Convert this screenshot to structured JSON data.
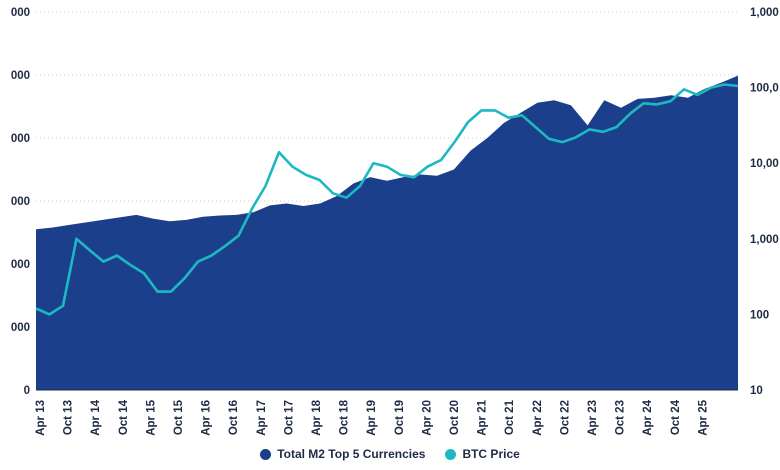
{
  "chart_data": {
    "type": "area",
    "title": "",
    "xlabel": "",
    "ylabel": "",
    "x_ticks": [
      "Apr 13",
      "Oct 13",
      "Apr 14",
      "Oct 14",
      "Apr 15",
      "Oct 15",
      "Apr 16",
      "Oct 16",
      "Apr 17",
      "Oct 17",
      "Apr 18",
      "Oct 18",
      "Apr 19",
      "Oct 19",
      "Apr 20",
      "Oct 20",
      "Apr 21",
      "Oct 21",
      "Apr 22",
      "Oct 22",
      "Apr 23",
      "Oct 23",
      "Apr 24",
      "Oct 24",
      "Apr 25"
    ],
    "y_left": {
      "ticks": [
        "000",
        "000",
        "000",
        "000",
        "000",
        "000",
        "0"
      ],
      "visible_label_suffixes": true
    },
    "y_right": {
      "scale": "log",
      "ticks": [
        "1,000",
        "100,0",
        "10,00",
        "1,000",
        "100",
        "10"
      ],
      "tick_values": [
        1000000,
        100000,
        10000,
        1000,
        100,
        10
      ],
      "range": [
        10,
        1000000
      ]
    },
    "grid": "horizontal-dotted",
    "legend_position": "bottom",
    "series": [
      {
        "name": "Total M2 Top 5 Currencies",
        "color": "#1b3f8b",
        "kind": "area",
        "axis": "left",
        "values_rel": [
          2.55,
          2.58,
          2.62,
          2.66,
          2.7,
          2.74,
          2.78,
          2.72,
          2.68,
          2.7,
          2.75,
          2.77,
          2.78,
          2.82,
          2.93,
          2.96,
          2.92,
          2.96,
          3.08,
          3.28,
          3.38,
          3.32,
          3.38,
          3.42,
          3.4,
          3.5,
          3.8,
          4.0,
          4.24,
          4.4,
          4.56,
          4.6,
          4.52,
          4.2,
          4.6,
          4.48,
          4.62,
          4.64,
          4.68,
          4.64,
          4.78,
          4.88,
          4.99
        ]
      },
      {
        "name": "BTC Price",
        "color": "#1db9c3",
        "kind": "line",
        "axis": "right",
        "values": [
          120,
          100,
          130,
          1000,
          700,
          500,
          600,
          450,
          350,
          200,
          200,
          300,
          500,
          600,
          800,
          1100,
          2500,
          5000,
          14000,
          9000,
          7000,
          6000,
          4000,
          3500,
          5000,
          10000,
          9000,
          7000,
          6500,
          9000,
          11000,
          19000,
          35000,
          50000,
          50000,
          40000,
          43000,
          30000,
          21000,
          19000,
          22000,
          28000,
          26000,
          30000,
          45000,
          62000,
          60000,
          66000,
          95000,
          80000,
          100000,
          110000,
          105000
        ]
      }
    ]
  }
}
